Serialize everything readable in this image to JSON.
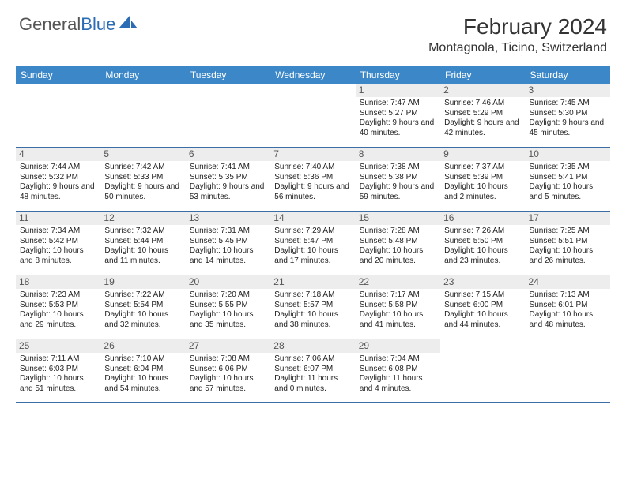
{
  "brand": {
    "part1": "General",
    "part2": "Blue"
  },
  "title": "February 2024",
  "location": "Montagnola, Ticino, Switzerland",
  "colors": {
    "header_bg": "#3b87c8",
    "header_text": "#ffffff",
    "daynum_bg": "#ededed",
    "border": "#3b6ea5",
    "brand_blue": "#2a6db5"
  },
  "dayHeaders": [
    "Sunday",
    "Monday",
    "Tuesday",
    "Wednesday",
    "Thursday",
    "Friday",
    "Saturday"
  ],
  "weeks": [
    [
      {
        "empty": true
      },
      {
        "empty": true
      },
      {
        "empty": true
      },
      {
        "empty": true
      },
      {
        "num": "1",
        "sunrise": "Sunrise: 7:47 AM",
        "sunset": "Sunset: 5:27 PM",
        "daylight": "Daylight: 9 hours and 40 minutes."
      },
      {
        "num": "2",
        "sunrise": "Sunrise: 7:46 AM",
        "sunset": "Sunset: 5:29 PM",
        "daylight": "Daylight: 9 hours and 42 minutes."
      },
      {
        "num": "3",
        "sunrise": "Sunrise: 7:45 AM",
        "sunset": "Sunset: 5:30 PM",
        "daylight": "Daylight: 9 hours and 45 minutes."
      }
    ],
    [
      {
        "num": "4",
        "sunrise": "Sunrise: 7:44 AM",
        "sunset": "Sunset: 5:32 PM",
        "daylight": "Daylight: 9 hours and 48 minutes."
      },
      {
        "num": "5",
        "sunrise": "Sunrise: 7:42 AM",
        "sunset": "Sunset: 5:33 PM",
        "daylight": "Daylight: 9 hours and 50 minutes."
      },
      {
        "num": "6",
        "sunrise": "Sunrise: 7:41 AM",
        "sunset": "Sunset: 5:35 PM",
        "daylight": "Daylight: 9 hours and 53 minutes."
      },
      {
        "num": "7",
        "sunrise": "Sunrise: 7:40 AM",
        "sunset": "Sunset: 5:36 PM",
        "daylight": "Daylight: 9 hours and 56 minutes."
      },
      {
        "num": "8",
        "sunrise": "Sunrise: 7:38 AM",
        "sunset": "Sunset: 5:38 PM",
        "daylight": "Daylight: 9 hours and 59 minutes."
      },
      {
        "num": "9",
        "sunrise": "Sunrise: 7:37 AM",
        "sunset": "Sunset: 5:39 PM",
        "daylight": "Daylight: 10 hours and 2 minutes."
      },
      {
        "num": "10",
        "sunrise": "Sunrise: 7:35 AM",
        "sunset": "Sunset: 5:41 PM",
        "daylight": "Daylight: 10 hours and 5 minutes."
      }
    ],
    [
      {
        "num": "11",
        "sunrise": "Sunrise: 7:34 AM",
        "sunset": "Sunset: 5:42 PM",
        "daylight": "Daylight: 10 hours and 8 minutes."
      },
      {
        "num": "12",
        "sunrise": "Sunrise: 7:32 AM",
        "sunset": "Sunset: 5:44 PM",
        "daylight": "Daylight: 10 hours and 11 minutes."
      },
      {
        "num": "13",
        "sunrise": "Sunrise: 7:31 AM",
        "sunset": "Sunset: 5:45 PM",
        "daylight": "Daylight: 10 hours and 14 minutes."
      },
      {
        "num": "14",
        "sunrise": "Sunrise: 7:29 AM",
        "sunset": "Sunset: 5:47 PM",
        "daylight": "Daylight: 10 hours and 17 minutes."
      },
      {
        "num": "15",
        "sunrise": "Sunrise: 7:28 AM",
        "sunset": "Sunset: 5:48 PM",
        "daylight": "Daylight: 10 hours and 20 minutes."
      },
      {
        "num": "16",
        "sunrise": "Sunrise: 7:26 AM",
        "sunset": "Sunset: 5:50 PM",
        "daylight": "Daylight: 10 hours and 23 minutes."
      },
      {
        "num": "17",
        "sunrise": "Sunrise: 7:25 AM",
        "sunset": "Sunset: 5:51 PM",
        "daylight": "Daylight: 10 hours and 26 minutes."
      }
    ],
    [
      {
        "num": "18",
        "sunrise": "Sunrise: 7:23 AM",
        "sunset": "Sunset: 5:53 PM",
        "daylight": "Daylight: 10 hours and 29 minutes."
      },
      {
        "num": "19",
        "sunrise": "Sunrise: 7:22 AM",
        "sunset": "Sunset: 5:54 PM",
        "daylight": "Daylight: 10 hours and 32 minutes."
      },
      {
        "num": "20",
        "sunrise": "Sunrise: 7:20 AM",
        "sunset": "Sunset: 5:55 PM",
        "daylight": "Daylight: 10 hours and 35 minutes."
      },
      {
        "num": "21",
        "sunrise": "Sunrise: 7:18 AM",
        "sunset": "Sunset: 5:57 PM",
        "daylight": "Daylight: 10 hours and 38 minutes."
      },
      {
        "num": "22",
        "sunrise": "Sunrise: 7:17 AM",
        "sunset": "Sunset: 5:58 PM",
        "daylight": "Daylight: 10 hours and 41 minutes."
      },
      {
        "num": "23",
        "sunrise": "Sunrise: 7:15 AM",
        "sunset": "Sunset: 6:00 PM",
        "daylight": "Daylight: 10 hours and 44 minutes."
      },
      {
        "num": "24",
        "sunrise": "Sunrise: 7:13 AM",
        "sunset": "Sunset: 6:01 PM",
        "daylight": "Daylight: 10 hours and 48 minutes."
      }
    ],
    [
      {
        "num": "25",
        "sunrise": "Sunrise: 7:11 AM",
        "sunset": "Sunset: 6:03 PM",
        "daylight": "Daylight: 10 hours and 51 minutes."
      },
      {
        "num": "26",
        "sunrise": "Sunrise: 7:10 AM",
        "sunset": "Sunset: 6:04 PM",
        "daylight": "Daylight: 10 hours and 54 minutes."
      },
      {
        "num": "27",
        "sunrise": "Sunrise: 7:08 AM",
        "sunset": "Sunset: 6:06 PM",
        "daylight": "Daylight: 10 hours and 57 minutes."
      },
      {
        "num": "28",
        "sunrise": "Sunrise: 7:06 AM",
        "sunset": "Sunset: 6:07 PM",
        "daylight": "Daylight: 11 hours and 0 minutes."
      },
      {
        "num": "29",
        "sunrise": "Sunrise: 7:04 AM",
        "sunset": "Sunset: 6:08 PM",
        "daylight": "Daylight: 11 hours and 4 minutes."
      },
      {
        "empty": true
      },
      {
        "empty": true
      }
    ]
  ]
}
